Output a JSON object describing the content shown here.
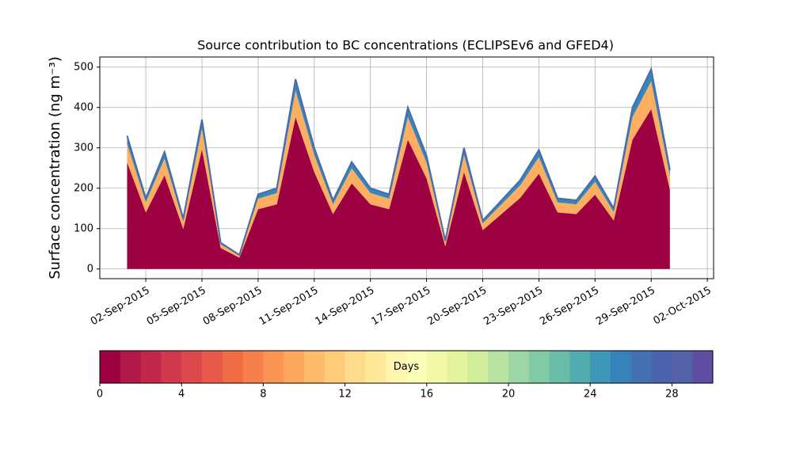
{
  "chart_data": {
    "type": "stacked_area",
    "title": "Source contribution to BC concentrations (ECLIPSEv6 and GFED4)",
    "y_label": "Surface concentration (ng m⁻³)",
    "x": [
      "2015-09-01",
      "2015-09-02",
      "2015-09-03",
      "2015-09-04",
      "2015-09-05",
      "2015-09-06",
      "2015-09-07",
      "2015-09-08",
      "2015-09-09",
      "2015-09-10",
      "2015-09-11",
      "2015-09-12",
      "2015-09-13",
      "2015-09-14",
      "2015-09-15",
      "2015-09-16",
      "2015-09-17",
      "2015-09-18",
      "2015-09-19",
      "2015-09-20",
      "2015-09-21",
      "2015-09-22",
      "2015-09-23",
      "2015-09-24",
      "2015-09-25",
      "2015-09-26",
      "2015-09-27",
      "2015-09-28",
      "2015-09-29",
      "2015-09-30"
    ],
    "series": [
      {
        "color": "#9e0142",
        "values": [
          264,
          140,
          232,
          99,
          296,
          52,
          28,
          148,
          160,
          376,
          240,
          136,
          212,
          160,
          148,
          320,
          224,
          56,
          240,
          96,
          136,
          176,
          236,
          140,
          136,
          184,
          120,
          320,
          396,
          196
        ]
      },
      {
        "color": "#fdae61",
        "values": [
          46,
          25,
          41,
          18,
          52,
          9,
          5,
          26,
          28,
          66,
          42,
          24,
          37,
          28,
          26,
          56,
          39,
          10,
          42,
          17,
          24,
          31,
          41,
          25,
          24,
          32,
          21,
          56,
          69,
          34
        ]
      },
      {
        "color": "#3288bd",
        "values": [
          20,
          10,
          17,
          8,
          22,
          4,
          2,
          11,
          12,
          28,
          18,
          10,
          16,
          12,
          11,
          24,
          17,
          4,
          18,
          7,
          10,
          13,
          18,
          10,
          10,
          14,
          9,
          24,
          30,
          15
        ]
      }
    ],
    "outline_color": "#4a6aa8",
    "xlim": [
      "2015-08-30T13:00",
      "2015-10-02T08:00"
    ],
    "xticks": [
      {
        "value": "2015-09-02",
        "label": "02-Sep-2015"
      },
      {
        "value": "2015-09-05",
        "label": "05-Sep-2015"
      },
      {
        "value": "2015-09-08",
        "label": "08-Sep-2015"
      },
      {
        "value": "2015-09-11",
        "label": "11-Sep-2015"
      },
      {
        "value": "2015-09-14",
        "label": "14-Sep-2015"
      },
      {
        "value": "2015-09-17",
        "label": "17-Sep-2015"
      },
      {
        "value": "2015-09-20",
        "label": "20-Sep-2015"
      },
      {
        "value": "2015-09-23",
        "label": "23-Sep-2015"
      },
      {
        "value": "2015-09-26",
        "label": "26-Sep-2015"
      },
      {
        "value": "2015-09-29",
        "label": "29-Sep-2015"
      },
      {
        "value": "2015-10-02",
        "label": "02-Oct-2015"
      }
    ],
    "ylim": [
      -24,
      525
    ],
    "yticks": [
      0,
      100,
      200,
      300,
      400,
      500
    ],
    "grid": true,
    "colorbar": {
      "label": "Days",
      "lim": [
        0,
        30
      ],
      "ticks": [
        0,
        4,
        8,
        12,
        16,
        20,
        24,
        28
      ],
      "colors": [
        "#9e0142",
        "#b01a4a",
        "#c1274a",
        "#d0384e",
        "#dc494c",
        "#e75948",
        "#f06c45",
        "#f67f4b",
        "#f99455",
        "#fca85e",
        "#fdbb6c",
        "#fecc7b",
        "#fedc8c",
        "#fee999",
        "#fff5ae",
        "#fbfdb9",
        "#f1f9a9",
        "#e4f49c",
        "#d0ec9c",
        "#b8e2a1",
        "#9dd5a4",
        "#82caa5",
        "#69bda9",
        "#52abae",
        "#3f97b7",
        "#3682ba",
        "#4470b1",
        "#4b63ad",
        "#5460a8",
        "#5e4fa2"
      ]
    }
  }
}
